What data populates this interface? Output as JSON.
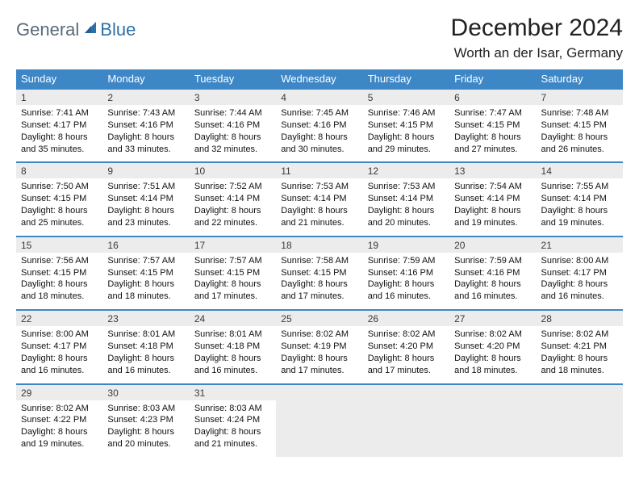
{
  "brand": {
    "general": "General",
    "blue": "Blue"
  },
  "title": "December 2024",
  "location": "Worth an der Isar, Germany",
  "colors": {
    "header_bg": "#3d87c7",
    "header_text": "#ffffff",
    "daynum_bg": "#ececec",
    "border": "#3d87c7",
    "logo_gray": "#5a6a78",
    "logo_blue": "#2f6fa8"
  },
  "weekdays": [
    "Sunday",
    "Monday",
    "Tuesday",
    "Wednesday",
    "Thursday",
    "Friday",
    "Saturday"
  ],
  "weeks": [
    [
      {
        "n": "1",
        "sr": "7:41 AM",
        "ss": "4:17 PM",
        "dl": "8 hours and 35 minutes."
      },
      {
        "n": "2",
        "sr": "7:43 AM",
        "ss": "4:16 PM",
        "dl": "8 hours and 33 minutes."
      },
      {
        "n": "3",
        "sr": "7:44 AM",
        "ss": "4:16 PM",
        "dl": "8 hours and 32 minutes."
      },
      {
        "n": "4",
        "sr": "7:45 AM",
        "ss": "4:16 PM",
        "dl": "8 hours and 30 minutes."
      },
      {
        "n": "5",
        "sr": "7:46 AM",
        "ss": "4:15 PM",
        "dl": "8 hours and 29 minutes."
      },
      {
        "n": "6",
        "sr": "7:47 AM",
        "ss": "4:15 PM",
        "dl": "8 hours and 27 minutes."
      },
      {
        "n": "7",
        "sr": "7:48 AM",
        "ss": "4:15 PM",
        "dl": "8 hours and 26 minutes."
      }
    ],
    [
      {
        "n": "8",
        "sr": "7:50 AM",
        "ss": "4:15 PM",
        "dl": "8 hours and 25 minutes."
      },
      {
        "n": "9",
        "sr": "7:51 AM",
        "ss": "4:14 PM",
        "dl": "8 hours and 23 minutes."
      },
      {
        "n": "10",
        "sr": "7:52 AM",
        "ss": "4:14 PM",
        "dl": "8 hours and 22 minutes."
      },
      {
        "n": "11",
        "sr": "7:53 AM",
        "ss": "4:14 PM",
        "dl": "8 hours and 21 minutes."
      },
      {
        "n": "12",
        "sr": "7:53 AM",
        "ss": "4:14 PM",
        "dl": "8 hours and 20 minutes."
      },
      {
        "n": "13",
        "sr": "7:54 AM",
        "ss": "4:14 PM",
        "dl": "8 hours and 19 minutes."
      },
      {
        "n": "14",
        "sr": "7:55 AM",
        "ss": "4:14 PM",
        "dl": "8 hours and 19 minutes."
      }
    ],
    [
      {
        "n": "15",
        "sr": "7:56 AM",
        "ss": "4:15 PM",
        "dl": "8 hours and 18 minutes."
      },
      {
        "n": "16",
        "sr": "7:57 AM",
        "ss": "4:15 PM",
        "dl": "8 hours and 18 minutes."
      },
      {
        "n": "17",
        "sr": "7:57 AM",
        "ss": "4:15 PM",
        "dl": "8 hours and 17 minutes."
      },
      {
        "n": "18",
        "sr": "7:58 AM",
        "ss": "4:15 PM",
        "dl": "8 hours and 17 minutes."
      },
      {
        "n": "19",
        "sr": "7:59 AM",
        "ss": "4:16 PM",
        "dl": "8 hours and 16 minutes."
      },
      {
        "n": "20",
        "sr": "7:59 AM",
        "ss": "4:16 PM",
        "dl": "8 hours and 16 minutes."
      },
      {
        "n": "21",
        "sr": "8:00 AM",
        "ss": "4:17 PM",
        "dl": "8 hours and 16 minutes."
      }
    ],
    [
      {
        "n": "22",
        "sr": "8:00 AM",
        "ss": "4:17 PM",
        "dl": "8 hours and 16 minutes."
      },
      {
        "n": "23",
        "sr": "8:01 AM",
        "ss": "4:18 PM",
        "dl": "8 hours and 16 minutes."
      },
      {
        "n": "24",
        "sr": "8:01 AM",
        "ss": "4:18 PM",
        "dl": "8 hours and 16 minutes."
      },
      {
        "n": "25",
        "sr": "8:02 AM",
        "ss": "4:19 PM",
        "dl": "8 hours and 17 minutes."
      },
      {
        "n": "26",
        "sr": "8:02 AM",
        "ss": "4:20 PM",
        "dl": "8 hours and 17 minutes."
      },
      {
        "n": "27",
        "sr": "8:02 AM",
        "ss": "4:20 PM",
        "dl": "8 hours and 18 minutes."
      },
      {
        "n": "28",
        "sr": "8:02 AM",
        "ss": "4:21 PM",
        "dl": "8 hours and 18 minutes."
      }
    ],
    [
      {
        "n": "29",
        "sr": "8:02 AM",
        "ss": "4:22 PM",
        "dl": "8 hours and 19 minutes."
      },
      {
        "n": "30",
        "sr": "8:03 AM",
        "ss": "4:23 PM",
        "dl": "8 hours and 20 minutes."
      },
      {
        "n": "31",
        "sr": "8:03 AM",
        "ss": "4:24 PM",
        "dl": "8 hours and 21 minutes."
      },
      null,
      null,
      null,
      null
    ]
  ],
  "labels": {
    "sunrise": "Sunrise:",
    "sunset": "Sunset:",
    "daylight": "Daylight:"
  }
}
